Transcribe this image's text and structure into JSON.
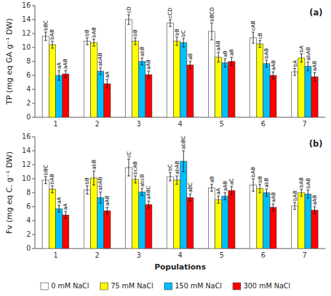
{
  "chart_data": [
    {
      "type": "bar",
      "title": "(a)",
      "y_label": "TP (mg eq GA g⁻¹ DW)",
      "categories": [
        "1",
        "2",
        "3",
        "4",
        "5",
        "6",
        "7"
      ],
      "ylim": [
        0,
        16
      ],
      "yticks": [
        0,
        2,
        4,
        6,
        8,
        10,
        12,
        14,
        16
      ],
      "grid": false,
      "legend": "bottom",
      "series": [
        {
          "name": "0 mM NaCl",
          "color": "white",
          "values": [
            11.6,
            10.9,
            14.0,
            13.5,
            12.3,
            11.4,
            6.5
          ],
          "errors": [
            0.6,
            0.5,
            0.7,
            0.5,
            1.2,
            0.8,
            0.5
          ],
          "annotations": [
            "bBC",
            "bB",
            "cD",
            "cCD",
            "bBCD",
            "cAB",
            "bA"
          ]
        },
        {
          "name": "75 mM NaCl",
          "color": "#FFFF00",
          "values": [
            10.4,
            10.7,
            10.9,
            10.9,
            8.6,
            10.5,
            8.5
          ],
          "errors": [
            0.5,
            0.5,
            0.5,
            0.6,
            0.7,
            0.5,
            0.6
          ],
          "annotations": [
            "bAB",
            "bAB",
            "bB",
            "bB",
            "aAB",
            "cB",
            "bA"
          ]
        },
        {
          "name": "150 mM NaCl",
          "color": "#00BFFF",
          "values": [
            6.0,
            6.6,
            8.0,
            10.7,
            7.8,
            7.7,
            7.3
          ],
          "errors": [
            0.7,
            0.5,
            0.5,
            0.6,
            0.6,
            0.5,
            0.6
          ],
          "annotations": [
            "aA",
            "abAB",
            "abB",
            "bC",
            "aB",
            "bAB",
            "abAB"
          ]
        },
        {
          "name": "300 mM NaCl",
          "color": "#FF0000",
          "values": [
            6.2,
            4.8,
            6.1,
            7.5,
            8.0,
            6.0,
            5.8
          ],
          "errors": [
            0.5,
            0.6,
            0.5,
            0.5,
            0.6,
            0.5,
            0.6
          ],
          "annotations": [
            "aAB",
            "aA",
            "aAB",
            "aB",
            "aB",
            "aAB",
            "aAB"
          ]
        }
      ]
    },
    {
      "type": "bar",
      "title": "(b)",
      "y_label": "Fv (mg eq C. g⁻¹ DW)",
      "x_label": "Populations",
      "categories": [
        "1",
        "2",
        "3",
        "4",
        "5",
        "6",
        "7"
      ],
      "ylim": [
        0,
        16
      ],
      "yticks": [
        0,
        2,
        4,
        6,
        8,
        10,
        12,
        14,
        16
      ],
      "grid": false,
      "series": [
        {
          "name": "0 mM NaCl",
          "color": "white",
          "values": [
            9.8,
            8.4,
            11.6,
            10.3,
            8.7,
            9.1,
            6.1
          ],
          "errors": [
            0.5,
            0.6,
            1.2,
            0.6,
            0.5,
            0.9,
            0.5
          ],
          "annotations": [
            "bBC",
            "bB",
            "cC",
            "bC",
            "aB",
            "bAB",
            "bAB"
          ]
        },
        {
          "name": "75 mM NaCl",
          "color": "#FFFF00",
          "values": [
            8.5,
            10.1,
            9.9,
            9.8,
            7.0,
            8.6,
            8.0
          ],
          "errors": [
            0.5,
            1.0,
            0.5,
            0.6,
            0.5,
            0.6,
            0.5
          ],
          "annotations": [
            "bAB",
            "abB",
            "bcAB",
            "abAB",
            "aA",
            "bB",
            "bAB"
          ]
        },
        {
          "name": "150 mM NaCl",
          "color": "#00BFFF",
          "values": [
            5.7,
            7.3,
            8.1,
            12.5,
            7.5,
            8.0,
            7.8
          ],
          "errors": [
            0.5,
            0.8,
            0.5,
            1.5,
            0.5,
            0.5,
            0.6
          ],
          "annotations": [
            "aA",
            "abAB",
            "abcB",
            "abBC",
            "aAB",
            "abB",
            "bAB"
          ]
        },
        {
          "name": "300 mM NaCl",
          "color": "#FF0000",
          "values": [
            4.8,
            5.4,
            6.3,
            7.3,
            8.3,
            5.9,
            5.5
          ],
          "errors": [
            0.5,
            0.5,
            0.5,
            0.5,
            0.6,
            0.5,
            0.5
          ],
          "annotations": [
            "aA",
            "aAB",
            "aABC",
            "aBC",
            "aC",
            "aAB",
            "aAB"
          ]
        }
      ]
    }
  ]
}
